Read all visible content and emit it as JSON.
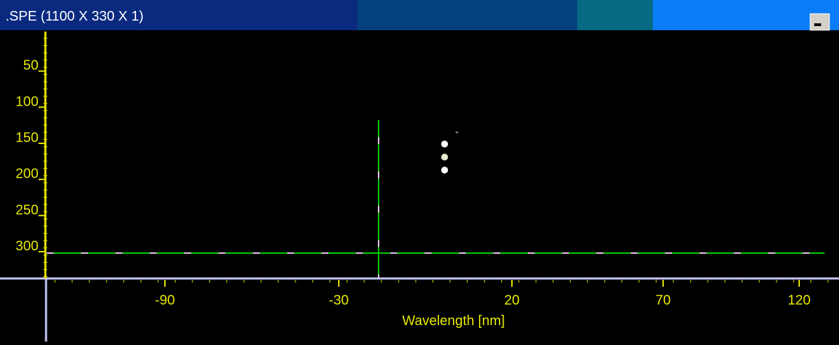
{
  "window": {
    "title": ".SPE (1100 X 330 X 1)"
  },
  "y_axis": {
    "ticks": [
      50,
      100,
      150,
      200,
      250,
      300
    ]
  },
  "x_axis": {
    "ticks": [
      -90,
      -30,
      20,
      70,
      120
    ],
    "label": "Wavelength [nm]"
  }
}
